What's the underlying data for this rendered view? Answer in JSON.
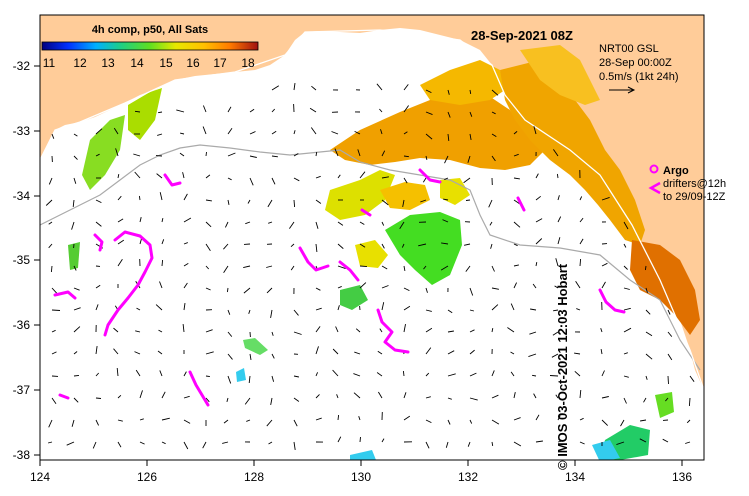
{
  "header": {
    "colorbar_title": "4h comp, p50, All Sats",
    "colorbar_ticks": [
      "11",
      "12",
      "13",
      "14",
      "15",
      "16",
      "17",
      "18"
    ],
    "date_label": "28-Sep-2021 08Z"
  },
  "current_legend": {
    "line1": "NRT00 GSL",
    "line2": "28-Sep 00:00Z",
    "line3": "0.5m/s (1kt 24h)"
  },
  "argo_legend": {
    "argo_label": "Argo",
    "drifters_line1": "drifters@12h",
    "drifters_line2": "to 29/09-12Z"
  },
  "axes": {
    "x_ticks": [
      "124",
      "126",
      "128",
      "130",
      "132",
      "134",
      "136"
    ],
    "y_ticks": [
      "-32",
      "-33",
      "-34",
      "-35",
      "-36",
      "-37",
      "-38"
    ]
  },
  "credit": "© IMOS 03-Oct-2021 12:03 Hobart",
  "colors": {
    "land": "#ffcc99",
    "argo": "#ff00ff",
    "sst_warm": "#f0a500",
    "sst_mid": "#dde000",
    "sst_cool": "#22cc22"
  }
}
